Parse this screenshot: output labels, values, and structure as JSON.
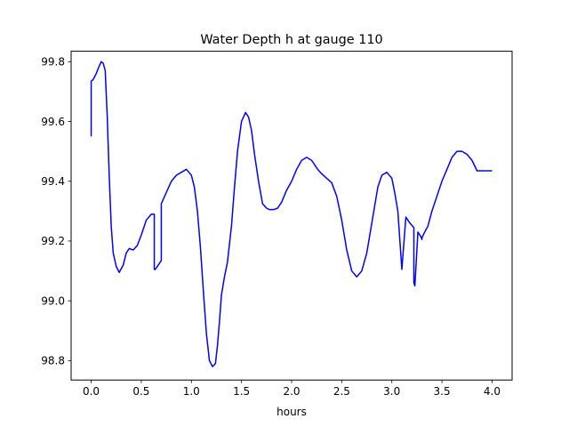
{
  "chart_data": {
    "type": "line",
    "title": "Water Depth h at gauge 110",
    "xlabel": "hours",
    "ylabel": "",
    "xlim": [
      -0.2,
      4.2
    ],
    "ylim": [
      98.735,
      99.835
    ],
    "xticks": [
      0.0,
      0.5,
      1.0,
      1.5,
      2.0,
      2.5,
      3.0,
      3.5,
      4.0
    ],
    "xtick_labels": [
      "0.0",
      "0.5",
      "1.0",
      "1.5",
      "2.0",
      "2.5",
      "3.0",
      "3.5",
      "4.0"
    ],
    "yticks": [
      98.8,
      99.0,
      99.2,
      99.4,
      99.6,
      99.8
    ],
    "ytick_labels": [
      "98.8",
      "99.0",
      "99.2",
      "99.4",
      "99.6",
      "99.8"
    ],
    "grid": false,
    "legend": "none",
    "series": [
      {
        "color": "#0000ff",
        "x": [
          0.0,
          0.0,
          0.02,
          0.05,
          0.08,
          0.1,
          0.12,
          0.14,
          0.16,
          0.18,
          0.2,
          0.22,
          0.25,
          0.28,
          0.32,
          0.35,
          0.38,
          0.42,
          0.46,
          0.5,
          0.55,
          0.6,
          0.63,
          0.63,
          0.64,
          0.7,
          0.7,
          0.72,
          0.76,
          0.8,
          0.85,
          0.9,
          0.95,
          1.0,
          1.03,
          1.06,
          1.09,
          1.12,
          1.15,
          1.18,
          1.21,
          1.24,
          1.26,
          1.28,
          1.3,
          1.33,
          1.36,
          1.4,
          1.43,
          1.46,
          1.5,
          1.54,
          1.57,
          1.6,
          1.63,
          1.67,
          1.71,
          1.75,
          1.78,
          1.82,
          1.86,
          1.9,
          1.95,
          2.0,
          2.05,
          2.1,
          2.15,
          2.2,
          2.23,
          2.26,
          2.3,
          2.35,
          2.4,
          2.45,
          2.5,
          2.55,
          2.6,
          2.65,
          2.7,
          2.75,
          2.78,
          2.82,
          2.86,
          2.9,
          2.95,
          3.0,
          3.03,
          3.06,
          3.1,
          3.14,
          3.18,
          3.22,
          3.22,
          3.23,
          3.26,
          3.29,
          3.3,
          3.3,
          3.32,
          3.36,
          3.4,
          3.45,
          3.5,
          3.55,
          3.6,
          3.65,
          3.7,
          3.75,
          3.8,
          3.85,
          3.88,
          3.91,
          3.94,
          3.97,
          4.0
        ],
        "y": [
          99.55,
          99.735,
          99.74,
          99.76,
          99.785,
          99.8,
          99.795,
          99.77,
          99.62,
          99.42,
          99.25,
          99.16,
          99.115,
          99.095,
          99.12,
          99.16,
          99.175,
          99.17,
          99.185,
          99.22,
          99.27,
          99.29,
          99.29,
          99.105,
          99.105,
          99.135,
          99.325,
          99.34,
          99.37,
          99.4,
          99.42,
          99.43,
          99.44,
          99.42,
          99.38,
          99.3,
          99.18,
          99.03,
          98.89,
          98.8,
          98.78,
          98.79,
          98.85,
          98.93,
          99.02,
          99.08,
          99.13,
          99.25,
          99.38,
          99.5,
          99.6,
          99.63,
          99.615,
          99.57,
          99.49,
          99.4,
          99.325,
          99.31,
          99.305,
          99.305,
          99.31,
          99.33,
          99.37,
          99.4,
          99.44,
          99.47,
          99.48,
          99.47,
          99.455,
          99.44,
          99.425,
          99.41,
          99.395,
          99.35,
          99.27,
          99.17,
          99.1,
          99.08,
          99.1,
          99.16,
          99.22,
          99.3,
          99.38,
          99.42,
          99.43,
          99.41,
          99.36,
          99.3,
          99.105,
          99.28,
          99.26,
          99.245,
          99.06,
          99.05,
          99.23,
          99.215,
          99.205,
          99.21,
          99.225,
          99.25,
          99.3,
          99.35,
          99.4,
          99.44,
          99.48,
          99.5,
          99.5,
          99.49,
          99.47,
          99.435,
          99.435,
          99.435,
          99.435,
          99.435,
          99.435
        ]
      }
    ]
  }
}
